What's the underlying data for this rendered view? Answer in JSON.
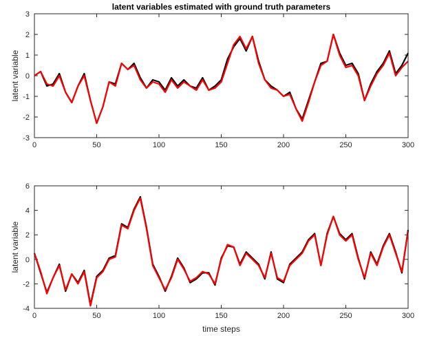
{
  "chart_data": [
    {
      "type": "line",
      "title": "latent variables estimated with ground truth parameters",
      "ylabel": "latent variable",
      "x": [
        0,
        5,
        10,
        15,
        20,
        25,
        30,
        35,
        40,
        45,
        50,
        55,
        60,
        65,
        70,
        75,
        80,
        85,
        90,
        95,
        100,
        105,
        110,
        115,
        120,
        125,
        130,
        135,
        140,
        145,
        150,
        155,
        160,
        165,
        170,
        175,
        180,
        185,
        190,
        195,
        200,
        205,
        210,
        215,
        220,
        225,
        230,
        235,
        240,
        245,
        250,
        255,
        260,
        265,
        270,
        275,
        280,
        285,
        290,
        295,
        300
      ],
      "series": [
        {
          "color": "#000000",
          "values": [
            0,
            0.2,
            -0.5,
            -0.4,
            0.1,
            -0.8,
            -1.3,
            -0.5,
            0.1,
            -1.2,
            -2.3,
            -1.5,
            -0.3,
            -0.4,
            0.6,
            0.3,
            0.6,
            -0.1,
            -0.6,
            -0.2,
            -0.3,
            -0.7,
            -0.1,
            -0.5,
            -0.2,
            -0.5,
            -0.6,
            -0.1,
            -0.7,
            -0.5,
            -0.2,
            0.8,
            1.4,
            1.8,
            1.2,
            1.9,
            0.7,
            -0.2,
            -0.5,
            -0.7,
            -1.0,
            -0.8,
            -1.6,
            -2.1,
            -1.2,
            -0.3,
            0.6,
            0.7,
            2.0,
            1.1,
            0.5,
            0.6,
            0.1,
            -1.2,
            -0.4,
            0.2,
            0.6,
            1.2,
            0.1,
            0.5,
            1.1
          ]
        },
        {
          "color": "#ff0000",
          "values": [
            0,
            0.2,
            -0.4,
            -0.5,
            0.0,
            -0.8,
            -1.3,
            -0.5,
            0.0,
            -1.2,
            -2.3,
            -1.5,
            -0.3,
            -0.5,
            0.6,
            0.3,
            0.5,
            -0.2,
            -0.6,
            -0.3,
            -0.4,
            -0.8,
            -0.2,
            -0.6,
            -0.3,
            -0.5,
            -0.7,
            -0.2,
            -0.7,
            -0.6,
            -0.3,
            0.6,
            1.5,
            1.9,
            1.3,
            1.9,
            0.6,
            -0.2,
            -0.6,
            -0.7,
            -1.0,
            -0.9,
            -1.6,
            -2.2,
            -1.3,
            -0.3,
            0.5,
            0.7,
            2.0,
            1.0,
            0.4,
            0.5,
            0.0,
            -1.2,
            -0.5,
            0.1,
            0.5,
            1.1,
            0.0,
            0.4,
            0.7
          ]
        }
      ],
      "xlim": [
        0,
        300
      ],
      "xticks": [
        0,
        50,
        100,
        150,
        200,
        250,
        300
      ],
      "ylim": [
        -3,
        3
      ],
      "yticks": [
        -3,
        -2,
        -1,
        0,
        1,
        2,
        3
      ]
    },
    {
      "type": "line",
      "ylabel": "latent variable",
      "xlabel": "time steps",
      "x": [
        0,
        5,
        10,
        15,
        20,
        25,
        30,
        35,
        40,
        45,
        50,
        55,
        60,
        65,
        70,
        75,
        80,
        85,
        90,
        95,
        100,
        105,
        110,
        115,
        120,
        125,
        130,
        135,
        140,
        145,
        150,
        155,
        160,
        165,
        170,
        175,
        180,
        185,
        190,
        195,
        200,
        205,
        210,
        215,
        220,
        225,
        230,
        235,
        240,
        245,
        250,
        255,
        260,
        265,
        270,
        275,
        280,
        285,
        290,
        295,
        300
      ],
      "series": [
        {
          "color": "#000000",
          "values": [
            0.5,
            -1.1,
            -2.7,
            -1.5,
            -0.4,
            -2.6,
            -1.2,
            -1.9,
            -0.9,
            -3.7,
            -1.4,
            -0.9,
            0.1,
            0.3,
            2.9,
            2.6,
            4.1,
            5.1,
            2.6,
            -0.4,
            -1.4,
            -2.6,
            -1.4,
            0.1,
            -0.7,
            -1.9,
            -1.6,
            -1.1,
            -1.1,
            -2.1,
            0.1,
            1.1,
            1.0,
            -0.4,
            0.6,
            0.1,
            -0.4,
            -1.6,
            0.6,
            -1.6,
            -1.9,
            -0.4,
            0.1,
            0.6,
            1.6,
            2.1,
            -0.5,
            2.1,
            3.5,
            2.1,
            1.6,
            2.1,
            0.1,
            -1.6,
            0.6,
            -0.4,
            1.1,
            2.1,
            0.6,
            -1.1,
            2.4
          ]
        },
        {
          "color": "#ff0000",
          "values": [
            0.5,
            -1.0,
            -2.8,
            -1.5,
            -0.5,
            -2.5,
            -1.2,
            -2.0,
            -1.0,
            -3.8,
            -1.5,
            -1.0,
            0.0,
            0.2,
            2.8,
            2.5,
            4.0,
            5.0,
            2.5,
            -0.5,
            -1.5,
            -2.5,
            -1.5,
            0.0,
            -0.8,
            -1.8,
            -1.5,
            -1.0,
            -1.2,
            -2.0,
            0.0,
            1.2,
            1.0,
            -0.5,
            0.5,
            0.0,
            -0.5,
            -1.5,
            0.5,
            -1.5,
            -1.8,
            -0.5,
            0.0,
            0.5,
            1.5,
            2.0,
            -0.5,
            2.0,
            3.5,
            2.0,
            1.5,
            2.0,
            0.0,
            -1.5,
            0.5,
            -0.5,
            1.0,
            2.0,
            0.5,
            -1.0,
            2.3
          ]
        }
      ],
      "xlim": [
        0,
        300
      ],
      "xticks": [
        0,
        50,
        100,
        150,
        200,
        250,
        300
      ],
      "ylim": [
        -4,
        6
      ],
      "yticks": [
        -4,
        -2,
        0,
        2,
        4,
        6
      ]
    }
  ]
}
